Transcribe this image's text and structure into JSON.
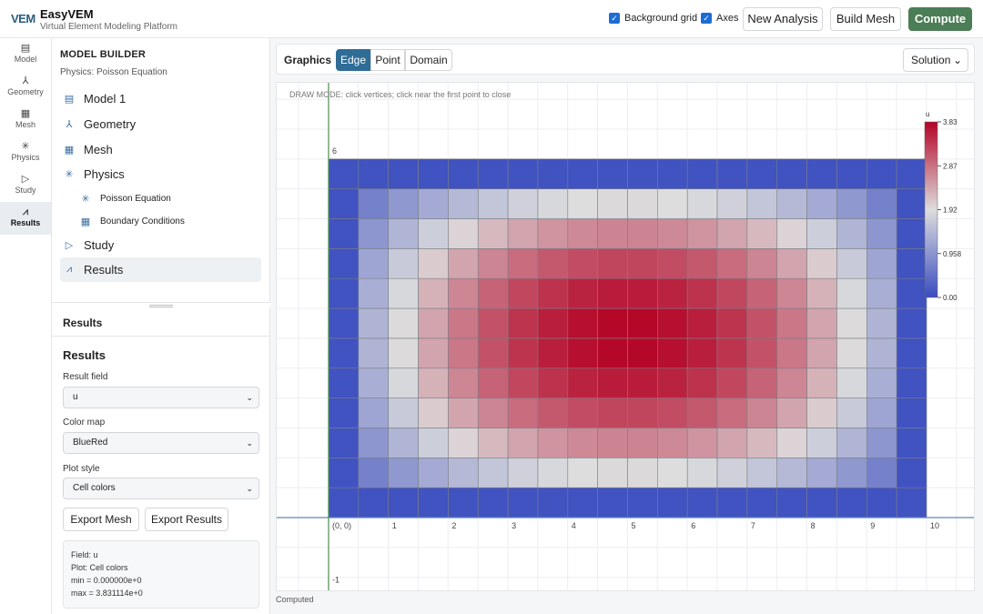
{
  "app": {
    "logo": "VEM",
    "title": "EasyVEM",
    "subtitle": "Virtual Element Modeling Platform"
  },
  "toolbar": {
    "bg_grid_label": "Background grid",
    "bg_grid_checked": true,
    "axes_label": "Axes",
    "axes_checked": true,
    "new_analysis": "New Analysis",
    "build_mesh": "Build Mesh",
    "compute": "Compute"
  },
  "rail": [
    {
      "icon": "model-icon",
      "glyph": "▤",
      "label": "Model"
    },
    {
      "icon": "geometry-icon",
      "glyph": "⅄",
      "label": "Geometry"
    },
    {
      "icon": "mesh-icon",
      "glyph": "▦",
      "label": "Mesh"
    },
    {
      "icon": "physics-icon",
      "glyph": "✳",
      "label": "Physics"
    },
    {
      "icon": "study-icon",
      "glyph": "▷",
      "label": "Study"
    },
    {
      "icon": "results-icon",
      "glyph": "⩘",
      "label": "Results"
    }
  ],
  "tree": {
    "title": "MODEL BUILDER",
    "physics": "Physics: Poisson Equation",
    "nodes": [
      {
        "label": "Model 1"
      },
      {
        "label": "Geometry"
      },
      {
        "label": "Mesh"
      },
      {
        "label": "Physics"
      },
      {
        "label": "Poisson Equation"
      },
      {
        "label": "Boundary Conditions"
      },
      {
        "label": "Study"
      },
      {
        "label": "Results"
      }
    ]
  },
  "props": {
    "header": "Results",
    "title": "Results",
    "result_field_label": "Result field",
    "result_field": "u",
    "color_map_label": "Color map",
    "color_map": "BlueRed",
    "plot_style_label": "Plot style",
    "plot_style": "Cell colors",
    "export_mesh": "Export Mesh",
    "export_results": "Export Results",
    "info": {
      "field": "Field: u",
      "plot": "Plot: Cell colors",
      "min": "min = 0.000000e+0",
      "max": "max = 3.831114e+0"
    }
  },
  "graphics": {
    "title": "Graphics",
    "modes": [
      "Edge",
      "Point",
      "Domain"
    ],
    "active_mode": "Edge",
    "view": "Solution",
    "hint": "DRAW MODE: click vertices; click near the first point to close",
    "status": "Computed"
  },
  "colorbar": {
    "label": "u",
    "ticks": [
      "3.83",
      "2.87",
      "1.92",
      "0.958",
      "0.00"
    ],
    "min": 0,
    "max": 3.831114,
    "colors": {
      "low": "#3a4cc0",
      "mid": "#dddddd",
      "high": "#b40426"
    }
  },
  "axes": {
    "x_ticks": [
      "(0, 0)",
      "1",
      "2",
      "3",
      "4",
      "5",
      "6",
      "7",
      "8",
      "9",
      "10"
    ],
    "y_ticks": [
      "6",
      "-1"
    ]
  },
  "mesh": {
    "nx": 20,
    "ny": 12,
    "xmin": 0,
    "xmax": 10,
    "ymin": 0,
    "ymax": 6
  }
}
